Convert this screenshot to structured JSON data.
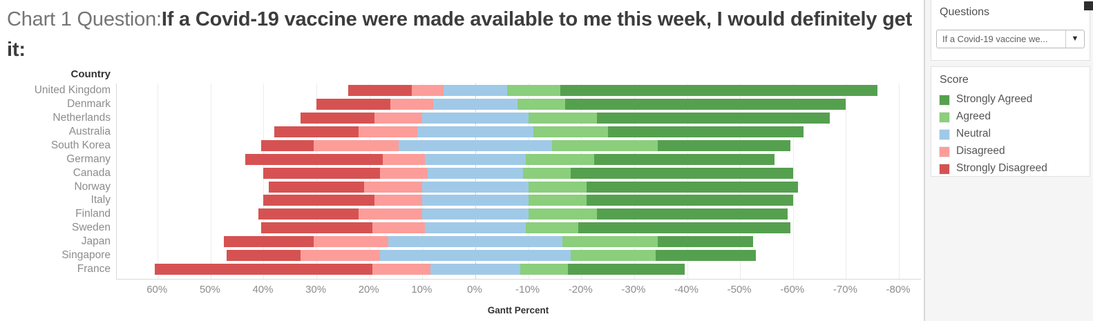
{
  "title": {
    "prefix": "Chart 1 Question:",
    "question": "If a Covid-19 vaccine were made available to me this week, I would definitely get it:"
  },
  "right_panel": {
    "questions_title": "Questions",
    "questions_dropdown_value": "If a Covid-19 vaccine we...",
    "dropdown_arrow": "▼",
    "score_title": "Score"
  },
  "chart_data": {
    "type": "bar",
    "subtype": "diverging-stacked-horizontal-likert",
    "row_header": "Country",
    "xlabel": "Gantt Percent",
    "x_axis": {
      "tick_values": [
        60,
        50,
        40,
        30,
        20,
        10,
        0,
        -10,
        -20,
        -30,
        -40,
        -50,
        -60,
        -70,
        -80
      ],
      "tick_labels": [
        "60%",
        "50%",
        "40%",
        "30%",
        "20%",
        "10%",
        "0%",
        "-10%",
        "-20%",
        "-30%",
        "-40%",
        "-50%",
        "-60%",
        "-70%",
        "-80%"
      ],
      "min": -80,
      "max": 60,
      "reversed": true,
      "grid": true,
      "zero_line": "dotted"
    },
    "categories": [
      "United Kingdom",
      "Denmark",
      "Netherlands",
      "Australia",
      "South Korea",
      "Germany",
      "Canada",
      "Norway",
      "Italy",
      "Finland",
      "Sweden",
      "Japan",
      "Singapore",
      "France"
    ],
    "series": [
      {
        "name": "Strongly Agreed",
        "color": "#55a04f",
        "values": [
          60,
          53,
          44,
          37,
          25,
          34,
          42,
          40,
          39,
          36,
          40,
          18,
          19,
          22
        ]
      },
      {
        "name": "Agreed",
        "color": "#8bce7c",
        "values": [
          10,
          9,
          13,
          14,
          20,
          13,
          9,
          11,
          11,
          13,
          10,
          18,
          16,
          9
        ]
      },
      {
        "name": "Neutral",
        "color": "#a0c9e8",
        "values": [
          12,
          16,
          20,
          22,
          29,
          19,
          18,
          20,
          20,
          20,
          19,
          33,
          36,
          17
        ]
      },
      {
        "name": "Disagreed",
        "color": "#fc9d9a",
        "values": [
          6,
          8,
          9,
          11,
          16,
          8,
          9,
          11,
          9,
          12,
          10,
          14,
          15,
          11
        ]
      },
      {
        "name": "Strongly Disagreed",
        "color": "#d65252",
        "values": [
          12,
          14,
          14,
          16,
          10,
          26,
          22,
          18,
          21,
          19,
          21,
          17,
          14,
          41
        ]
      }
    ],
    "layout_note": "Disagreement plotted toward positive (left) side of axis, agreement toward negative (right); Neutral centered on 0%.",
    "legend_title": "Score",
    "legend_position": "right"
  }
}
